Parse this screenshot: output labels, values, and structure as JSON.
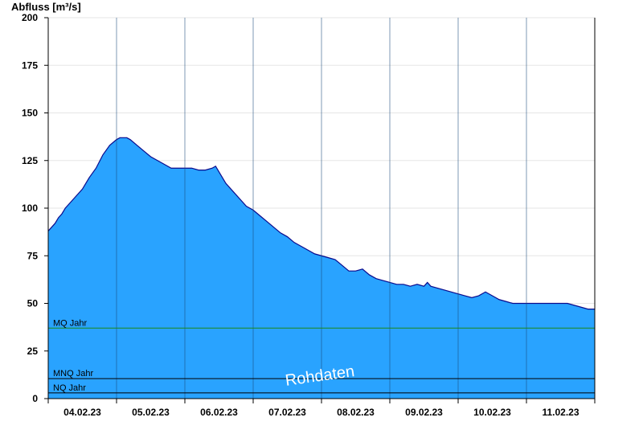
{
  "chart_data": {
    "type": "area",
    "ylabel": "Abfluss [m³/s]",
    "ylim": [
      0,
      200
    ],
    "y_ticks": [
      "0",
      "25",
      "50",
      "75",
      "100",
      "125",
      "150",
      "175",
      "200"
    ],
    "x_tick_labels": [
      "04.02.23",
      "05.02.23",
      "06.02.23",
      "07.02.23",
      "08.02.23",
      "09.02.23",
      "10.02.23",
      "11.02.23"
    ],
    "xlim": [
      0,
      8
    ],
    "grid": true,
    "series": [
      {
        "color": "#29a3ff",
        "line_color": "#0a0a8c",
        "x": [
          0,
          0.05,
          0.1,
          0.15,
          0.2,
          0.25,
          0.3,
          0.35,
          0.4,
          0.5,
          0.55,
          0.6,
          0.7,
          0.8,
          0.9,
          1.0,
          1.05,
          1.1,
          1.15,
          1.2,
          1.3,
          1.4,
          1.5,
          1.6,
          1.7,
          1.8,
          1.9,
          2.0,
          2.1,
          2.2,
          2.3,
          2.4,
          2.45,
          2.5,
          2.55,
          2.6,
          2.7,
          2.8,
          2.9,
          3.0,
          3.1,
          3.2,
          3.3,
          3.4,
          3.5,
          3.6,
          3.7,
          3.8,
          3.9,
          4.0,
          4.1,
          4.2,
          4.3,
          4.4,
          4.5,
          4.6,
          4.7,
          4.8,
          4.9,
          5.0,
          5.1,
          5.2,
          5.3,
          5.4,
          5.5,
          5.55,
          5.6,
          5.7,
          5.8,
          5.9,
          6.0,
          6.1,
          6.2,
          6.3,
          6.4,
          6.5,
          6.6,
          6.7,
          6.8,
          6.9,
          7.0,
          7.1,
          7.2,
          7.3,
          7.4,
          7.5,
          7.6,
          7.7,
          7.8,
          7.9,
          8.0
        ],
        "values": [
          88,
          90,
          92,
          95,
          97,
          100,
          102,
          104,
          106,
          110,
          113,
          116,
          121,
          128,
          133,
          136,
          137,
          137,
          137,
          136,
          133,
          130,
          127,
          125,
          123,
          121,
          121,
          121,
          121,
          120,
          120,
          121,
          122,
          119,
          116,
          113,
          109,
          105,
          101,
          99,
          96,
          93,
          90,
          87,
          85,
          82,
          80,
          78,
          76,
          75,
          74,
          73,
          70,
          67,
          67,
          68,
          65,
          63,
          62,
          61,
          60,
          60,
          59,
          60,
          59,
          61,
          59,
          58,
          57,
          56,
          55,
          54,
          53,
          54,
          56,
          54,
          52,
          51,
          50,
          50,
          50,
          50,
          50,
          50,
          50,
          50,
          50,
          49,
          48,
          47,
          47
        ]
      }
    ],
    "reference_lines": [
      {
        "label": "MQ Jahr",
        "value": 37,
        "color": "#1a8a1a"
      },
      {
        "label": "MNQ Jahr",
        "value": 10.5,
        "color": "#000000"
      },
      {
        "label": "NQ Jahr",
        "value": 3,
        "color": "#000000"
      }
    ],
    "watermark": "Rohdaten"
  }
}
